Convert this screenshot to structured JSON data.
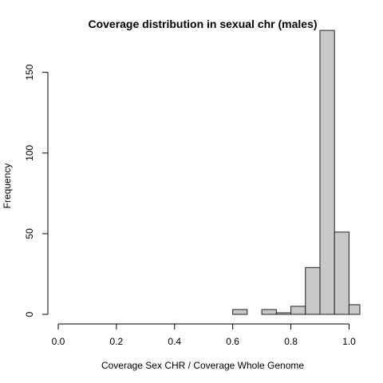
{
  "chart_data": {
    "type": "histogram",
    "title": "Coverage distribution in sexual chr (males)",
    "xlabel": "Coverage Sex CHR / Coverage Whole Genome",
    "ylabel": "Frequency",
    "xlim": [
      0.0,
      1.04
    ],
    "ylim": [
      0,
      180
    ],
    "x_ticks": [
      0.0,
      0.2,
      0.4,
      0.6,
      0.8,
      1.0
    ],
    "x_tick_labels": [
      "0.0",
      "0.2",
      "0.4",
      "0.6",
      "0.8",
      "1.0"
    ],
    "y_ticks": [
      0,
      50,
      100,
      150
    ],
    "y_tick_labels": [
      "0",
      "50",
      "100",
      "150"
    ],
    "bin_width": 0.05,
    "bins": [
      {
        "start": 0.6,
        "end": 0.65,
        "count": 3
      },
      {
        "start": 0.65,
        "end": 0.7,
        "count": 0
      },
      {
        "start": 0.7,
        "end": 0.75,
        "count": 3
      },
      {
        "start": 0.75,
        "end": 0.8,
        "count": 1
      },
      {
        "start": 0.8,
        "end": 0.85,
        "count": 5
      },
      {
        "start": 0.85,
        "end": 0.9,
        "count": 29
      },
      {
        "start": 0.9,
        "end": 0.95,
        "count": 176
      },
      {
        "start": 0.95,
        "end": 1.0,
        "count": 51
      },
      {
        "start": 1.0,
        "end": 1.05,
        "count": 6
      }
    ],
    "grid": false,
    "bar_fill": "#c8c8c8",
    "bar_stroke": "#222222"
  }
}
